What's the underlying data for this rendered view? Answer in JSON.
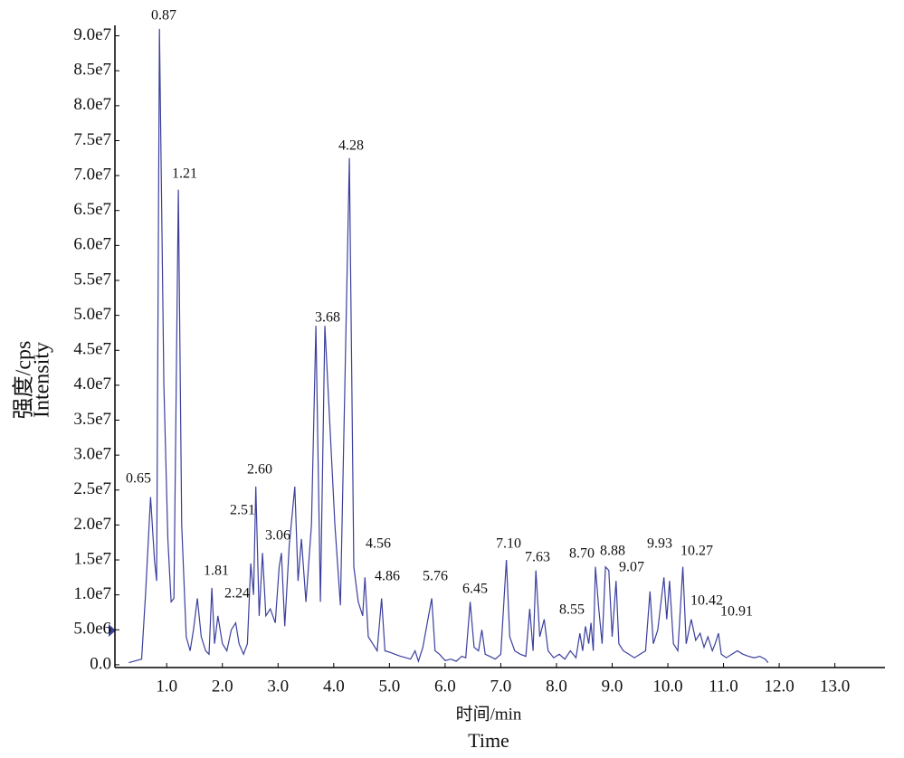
{
  "chart_data": {
    "type": "line",
    "x_label": "时间/min",
    "x_label_en": "Time",
    "y_label": "强度/cps",
    "y_label_en": "Intensity",
    "color": "#3b3f9c",
    "xlim": [
      0.07,
      13.9
    ],
    "ylim": [
      -400000,
      91500000
    ],
    "xticks": [
      {
        "value": 1,
        "label": "1.0"
      },
      {
        "value": 2,
        "label": "2.0"
      },
      {
        "value": 3,
        "label": "3.0"
      },
      {
        "value": 4,
        "label": "4.0"
      },
      {
        "value": 5,
        "label": "5.0"
      },
      {
        "value": 6,
        "label": "6.0"
      },
      {
        "value": 7,
        "label": "7.0"
      },
      {
        "value": 8,
        "label": "8.0"
      },
      {
        "value": 9,
        "label": "9.0"
      },
      {
        "value": 10,
        "label": "10.0"
      },
      {
        "value": 11,
        "label": "11.0"
      },
      {
        "value": 12,
        "label": "12.0"
      },
      {
        "value": 13,
        "label": "13.0"
      }
    ],
    "yticks": [
      {
        "value": 0,
        "label": "0.0"
      },
      {
        "value": 5000000,
        "label": "5.0e6"
      },
      {
        "value": 10000000,
        "label": "1.0e7"
      },
      {
        "value": 15000000,
        "label": "1.5e7"
      },
      {
        "value": 20000000,
        "label": "2.0e7"
      },
      {
        "value": 25000000,
        "label": "2.5e7"
      },
      {
        "value": 30000000,
        "label": "3.0e7"
      },
      {
        "value": 35000000,
        "label": "3.5e7"
      },
      {
        "value": 40000000,
        "label": "4.0e7"
      },
      {
        "value": 45000000,
        "label": "4.5e7"
      },
      {
        "value": 50000000,
        "label": "5.0e7"
      },
      {
        "value": 55000000,
        "label": "5.5e7"
      },
      {
        "value": 60000000,
        "label": "6.0e7"
      },
      {
        "value": 65000000,
        "label": "6.5e7"
      },
      {
        "value": 70000000,
        "label": "7.0e7"
      },
      {
        "value": 75000000,
        "label": "7.5e7"
      },
      {
        "value": 80000000,
        "label": "8.0e7"
      },
      {
        "value": 85000000,
        "label": "8.5e7"
      },
      {
        "value": 90000000,
        "label": "9.0e7"
      }
    ],
    "x": [
      0.32,
      0.55,
      0.62,
      0.71,
      0.78,
      0.82,
      0.87,
      0.95,
      1.02,
      1.08,
      1.13,
      1.21,
      1.27,
      1.35,
      1.42,
      1.48,
      1.55,
      1.62,
      1.7,
      1.76,
      1.81,
      1.86,
      1.92,
      2.0,
      2.08,
      2.16,
      2.24,
      2.3,
      2.38,
      2.45,
      2.51,
      2.56,
      2.6,
      2.66,
      2.72,
      2.78,
      2.86,
      2.95,
      3.02,
      3.06,
      3.12,
      3.2,
      3.3,
      3.36,
      3.42,
      3.5,
      3.6,
      3.68,
      3.76,
      3.84,
      3.92,
      4.02,
      4.12,
      4.2,
      4.28,
      4.36,
      4.44,
      4.52,
      4.56,
      4.62,
      4.7,
      4.78,
      4.86,
      4.92,
      5.0,
      5.1,
      5.2,
      5.3,
      5.38,
      5.46,
      5.52,
      5.6,
      5.76,
      5.82,
      5.9,
      6.0,
      6.1,
      6.2,
      6.3,
      6.37,
      6.45,
      6.52,
      6.6,
      6.66,
      6.72,
      6.8,
      6.9,
      7.0,
      7.1,
      7.16,
      7.25,
      7.35,
      7.45,
      7.52,
      7.58,
      7.63,
      7.7,
      7.78,
      7.85,
      7.95,
      8.05,
      8.15,
      8.25,
      8.35,
      8.42,
      8.47,
      8.52,
      8.58,
      8.62,
      8.66,
      8.7,
      8.76,
      8.82,
      8.88,
      8.94,
      9.0,
      9.07,
      9.12,
      9.2,
      9.3,
      9.4,
      9.5,
      9.6,
      9.68,
      9.74,
      9.82,
      9.93,
      9.98,
      10.03,
      10.1,
      10.18,
      10.27,
      10.33,
      10.42,
      10.5,
      10.58,
      10.65,
      10.72,
      10.8,
      10.85,
      10.91,
      10.96,
      11.05,
      11.15,
      11.25,
      11.35,
      11.45,
      11.55,
      11.65,
      11.75,
      11.8
    ],
    "values": [
      300000.0,
      800000.0,
      10000000.0,
      24000000.0,
      15000000.0,
      12000000.0,
      91000000.0,
      40000000.0,
      18000000.0,
      9000000.0,
      9500000.0,
      68000000.0,
      20000000.0,
      4000000.0,
      2000000.0,
      5000000.0,
      9500000.0,
      4000000.0,
      2000000.0,
      1500000.0,
      11000000.0,
      3000000.0,
      7000000.0,
      3000000.0,
      2000000.0,
      5000000.0,
      6000000.0,
      3000000.0,
      1500000.0,
      3000000.0,
      14500000.0,
      10000000.0,
      25500000.0,
      7000000.0,
      16000000.0,
      7000000.0,
      8000000.0,
      6000000.0,
      14000000.0,
      16000000.0,
      5500000.0,
      17000000.0,
      25500000.0,
      12000000.0,
      18000000.0,
      9000000.0,
      20000000.0,
      48500000.0,
      9000000.0,
      48500000.0,
      36000000.0,
      20000000.0,
      8500000.0,
      40000000.0,
      72500000.0,
      14000000.0,
      9000000.0,
      7000000.0,
      12500000.0,
      4000000.0,
      3000000.0,
      2000000.0,
      9500000.0,
      2000000.0,
      1800000.0,
      1500000.0,
      1200000.0,
      1000000.0,
      800000.0,
      2000000.0,
      500000.0,
      2500000.0,
      9500000.0,
      2000000.0,
      1500000.0,
      600000.0,
      800000.0,
      500000.0,
      1200000.0,
      1000000.0,
      9000000.0,
      2500000.0,
      2000000.0,
      5000000.0,
      1500000.0,
      1200000.0,
      800000.0,
      1500000.0,
      15000000.0,
      4000000.0,
      2000000.0,
      1500000.0,
      1200000.0,
      8000000.0,
      2000000.0,
      13500000.0,
      4000000.0,
      6500000.0,
      2000000.0,
      1000000.0,
      1500000.0,
      800000.0,
      2000000.0,
      1000000.0,
      4500000.0,
      2000000.0,
      5500000.0,
      3000000.0,
      6000000.0,
      2000000.0,
      14000000.0,
      8000000.0,
      3000000.0,
      14000000.0,
      13500000.0,
      4000000.0,
      12000000.0,
      3000000.0,
      2000000.0,
      1500000.0,
      1000000.0,
      1500000.0,
      2000000.0,
      10500000.0,
      3000000.0,
      5000000.0,
      12500000.0,
      6500000.0,
      12000000.0,
      3000000.0,
      2000000.0,
      14000000.0,
      3000000.0,
      6500000.0,
      3500000.0,
      4500000.0,
      2500000.0,
      4000000.0,
      2000000.0,
      3000000.0,
      4500000.0,
      1500000.0,
      1000000.0,
      1500000.0,
      2000000.0,
      1500000.0,
      1200000.0,
      1000000.0,
      1200000.0,
      800000.0,
      300000.0
    ],
    "annotations": [
      "0.65",
      "0.87",
      "1.21",
      "1.81",
      "2.24",
      "2.51",
      "2.60",
      "3.06",
      "3.68",
      "4.28",
      "4.56",
      "4.86",
      "5.76",
      "6.45",
      "7.10",
      "7.63",
      "8.55",
      "8.70",
      "8.88",
      "9.07",
      "9.93",
      "10.27",
      "10.42",
      "10.91"
    ]
  }
}
